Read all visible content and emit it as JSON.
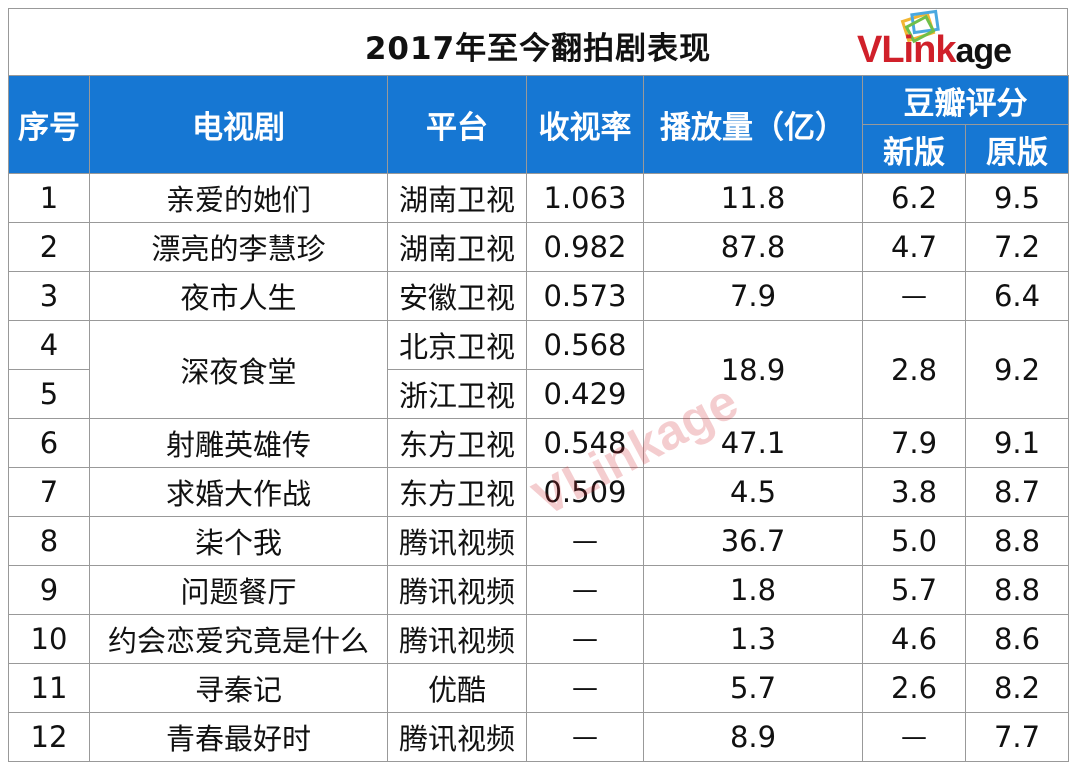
{
  "title": "2017年至今翻拍剧表现",
  "logo": {
    "text_v": "VLink",
    "text_age": "age",
    "accent": "#d0202a"
  },
  "header": {
    "seq": "序号",
    "drama": "电视剧",
    "platform": "平台",
    "rating": "收视率",
    "plays": "播放量（亿）",
    "douban": "豆瓣评分",
    "new_version": "新版",
    "original": "原版"
  },
  "header_color": "#1677d3",
  "rows": [
    {
      "seq": "1",
      "drama": "亲爱的她们",
      "platform": "湖南卫视",
      "rating": "1.063",
      "plays": "11.8",
      "new": "6.2",
      "orig": "9.5"
    },
    {
      "seq": "2",
      "drama": "漂亮的李慧珍",
      "platform": "湖南卫视",
      "rating": "0.982",
      "plays": "87.8",
      "new": "4.7",
      "orig": "7.2"
    },
    {
      "seq": "3",
      "drama": "夜市人生",
      "platform": "安徽卫视",
      "rating": "0.573",
      "plays": "7.9",
      "new": "—",
      "orig": "6.4"
    },
    {
      "seq": "4",
      "drama": "深夜食堂",
      "platform": "北京卫视",
      "rating": "0.568",
      "plays": "18.9",
      "new": "2.8",
      "orig": "9.2"
    },
    {
      "seq": "5",
      "platform": "浙江卫视",
      "rating": "0.429"
    },
    {
      "seq": "6",
      "drama": "射雕英雄传",
      "platform": "东方卫视",
      "rating": "0.548",
      "plays": "47.1",
      "new": "7.9",
      "orig": "9.1"
    },
    {
      "seq": "7",
      "drama": "求婚大作战",
      "platform": "东方卫视",
      "rating": "0.509",
      "plays": "4.5",
      "new": "3.8",
      "orig": "8.7"
    },
    {
      "seq": "8",
      "drama": "柒个我",
      "platform": "腾讯视频",
      "rating": "—",
      "plays": "36.7",
      "new": "5.0",
      "orig": "8.8"
    },
    {
      "seq": "9",
      "drama": "问题餐厅",
      "platform": "腾讯视频",
      "rating": "—",
      "plays": "1.8",
      "new": "5.7",
      "orig": "8.8"
    },
    {
      "seq": "10",
      "drama": "约会恋爱究竟是什么",
      "platform": "腾讯视频",
      "rating": "—",
      "plays": "1.3",
      "new": "4.6",
      "orig": "8.6"
    },
    {
      "seq": "11",
      "drama": "寻秦记",
      "platform": "优酷",
      "rating": "—",
      "plays": "5.7",
      "new": "2.6",
      "orig": "8.2"
    },
    {
      "seq": "12",
      "drama": "青春最好时",
      "platform": "腾讯视频",
      "rating": "—",
      "plays": "8.9",
      "new": "—",
      "orig": "7.7"
    }
  ]
}
